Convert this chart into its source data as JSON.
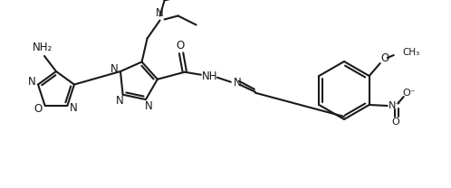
{
  "background_color": "#ffffff",
  "line_color": "#1a1a1a",
  "line_width": 1.5,
  "font_size": 8.5,
  "figsize": [
    4.98,
    2.08
  ],
  "dpi": 100,
  "xlim": [
    0,
    498
  ],
  "ylim": [
    0,
    208
  ]
}
